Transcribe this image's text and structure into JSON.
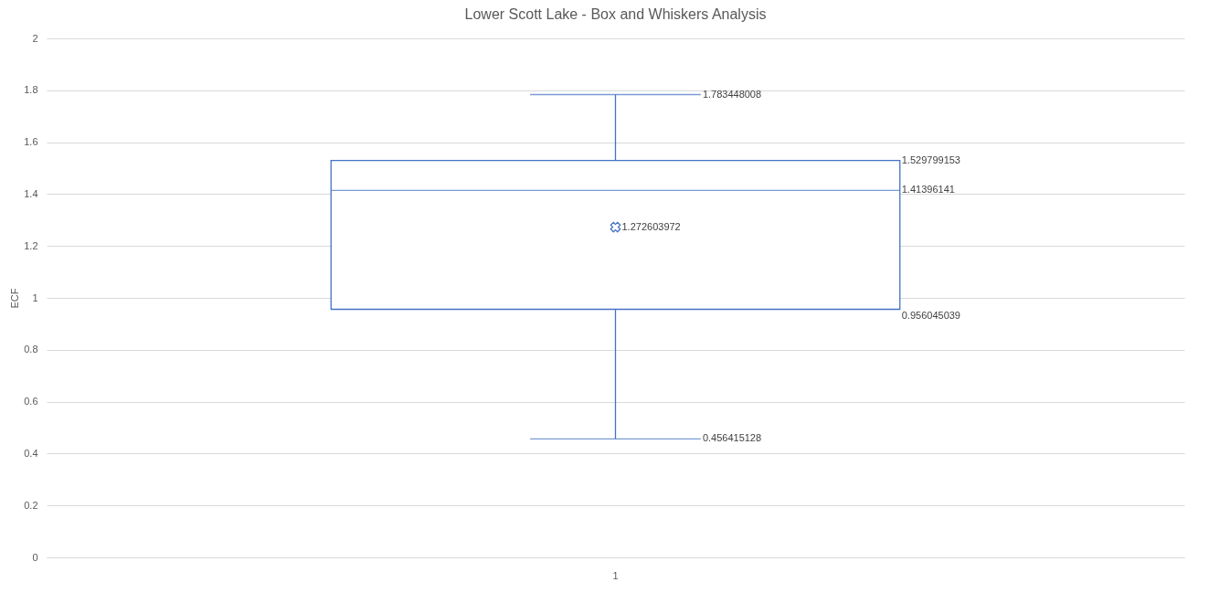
{
  "chart_data": {
    "type": "box",
    "title": "Lower Scott Lake - Box and Whiskers Analysis",
    "ylabel": "ECF",
    "categories": [
      "1"
    ],
    "series": [
      {
        "color": "#4472c4",
        "boxes": [
          {
            "low": 0.456415128,
            "q1": 0.956045039,
            "median": 1.41396141,
            "q3": 1.529799153,
            "high": 1.783448008,
            "mean": 1.272603972
          }
        ]
      }
    ],
    "ylim": [
      0,
      2
    ],
    "yticks": [
      0,
      0.2,
      0.4,
      0.6,
      0.8,
      1,
      1.2,
      1.4,
      1.6,
      1.8,
      2
    ],
    "grid": "y",
    "marker": "cross",
    "annotations": [
      "1.783448008",
      "1.529799153",
      "1.41396141",
      "1.272603972",
      "0.956045039",
      "0.456415128"
    ]
  }
}
